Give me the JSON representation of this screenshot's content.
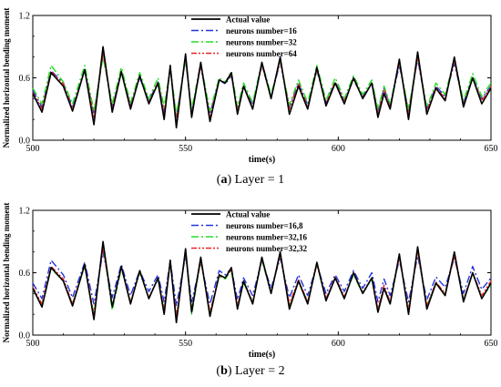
{
  "panels": [
    {
      "caption_letter": "a",
      "caption_text": "Layer = 1"
    },
    {
      "caption_letter": "b",
      "caption_text": "Layer = 2"
    }
  ],
  "chart_data": [
    {
      "type": "line",
      "title": "",
      "xlabel": "time(s)",
      "ylabel": "Normalized horizontal bending moment",
      "xlim": [
        500,
        650
      ],
      "ylim": [
        0,
        1.2
      ],
      "xticks": [
        500,
        550,
        600,
        650
      ],
      "yticks": [
        0,
        0.6,
        1.2
      ],
      "ytick_labels": [
        "0.0",
        "0.6",
        "1.2"
      ],
      "legend_position": "top-center",
      "series": [
        {
          "name": "Actual value",
          "color": "#000000",
          "dash": "solid",
          "x": [
            500,
            503,
            506,
            510,
            513,
            517,
            520,
            523,
            526,
            529,
            532,
            535,
            538,
            541,
            543,
            545,
            547,
            550,
            552,
            555,
            558,
            561,
            563,
            565,
            567,
            569,
            572,
            575,
            578,
            581,
            584,
            587,
            590,
            593,
            596,
            599,
            602,
            605,
            608,
            611,
            613,
            615,
            617,
            620,
            623,
            626,
            629,
            632,
            635,
            638,
            641,
            644,
            647,
            650
          ],
          "y": [
            0.45,
            0.27,
            0.65,
            0.52,
            0.28,
            0.68,
            0.15,
            0.9,
            0.27,
            0.66,
            0.3,
            0.62,
            0.35,
            0.55,
            0.2,
            0.72,
            0.12,
            0.83,
            0.22,
            0.75,
            0.18,
            0.58,
            0.55,
            0.65,
            0.25,
            0.52,
            0.3,
            0.75,
            0.4,
            0.8,
            0.25,
            0.52,
            0.3,
            0.7,
            0.33,
            0.55,
            0.35,
            0.6,
            0.4,
            0.55,
            0.22,
            0.45,
            0.3,
            0.78,
            0.2,
            0.85,
            0.25,
            0.5,
            0.38,
            0.8,
            0.32,
            0.6,
            0.35,
            0.5
          ]
        },
        {
          "name": "neurons number=16",
          "color": "#2233dd",
          "dash": "dashdot",
          "x": [
            500,
            503,
            506,
            510,
            513,
            517,
            520,
            523,
            526,
            529,
            532,
            535,
            538,
            541,
            543,
            545,
            547,
            550,
            552,
            555,
            558,
            561,
            563,
            565,
            567,
            569,
            572,
            575,
            578,
            581,
            584,
            587,
            590,
            593,
            596,
            599,
            602,
            605,
            608,
            611,
            613,
            615,
            617,
            620,
            623,
            626,
            629,
            632,
            635,
            638,
            641,
            644,
            647,
            650
          ],
          "y": [
            0.48,
            0.32,
            0.67,
            0.55,
            0.32,
            0.67,
            0.25,
            0.82,
            0.32,
            0.65,
            0.34,
            0.6,
            0.38,
            0.56,
            0.28,
            0.68,
            0.22,
            0.78,
            0.27,
            0.71,
            0.25,
            0.58,
            0.54,
            0.62,
            0.3,
            0.52,
            0.34,
            0.72,
            0.42,
            0.75,
            0.32,
            0.55,
            0.34,
            0.67,
            0.36,
            0.56,
            0.39,
            0.58,
            0.42,
            0.55,
            0.28,
            0.5,
            0.33,
            0.72,
            0.28,
            0.78,
            0.3,
            0.52,
            0.42,
            0.74,
            0.36,
            0.6,
            0.4,
            0.52
          ]
        },
        {
          "name": "neurons number=32",
          "color": "#22dd22",
          "dash": "dashdot",
          "x": [
            500,
            503,
            506,
            510,
            513,
            517,
            520,
            523,
            526,
            529,
            532,
            535,
            538,
            541,
            543,
            545,
            547,
            550,
            552,
            555,
            558,
            561,
            563,
            565,
            567,
            569,
            572,
            575,
            578,
            581,
            584,
            587,
            590,
            593,
            596,
            599,
            602,
            605,
            608,
            611,
            613,
            615,
            617,
            620,
            623,
            626,
            629,
            632,
            635,
            638,
            641,
            644,
            647,
            650
          ],
          "y": [
            0.5,
            0.35,
            0.72,
            0.56,
            0.35,
            0.72,
            0.28,
            0.8,
            0.35,
            0.7,
            0.36,
            0.65,
            0.4,
            0.6,
            0.32,
            0.7,
            0.25,
            0.76,
            0.3,
            0.74,
            0.28,
            0.6,
            0.56,
            0.66,
            0.32,
            0.55,
            0.36,
            0.75,
            0.44,
            0.76,
            0.34,
            0.58,
            0.36,
            0.72,
            0.38,
            0.6,
            0.4,
            0.62,
            0.44,
            0.58,
            0.3,
            0.52,
            0.35,
            0.74,
            0.3,
            0.8,
            0.32,
            0.55,
            0.44,
            0.78,
            0.38,
            0.64,
            0.42,
            0.55
          ]
        },
        {
          "name": "neurons number=64",
          "color": "#ee2222",
          "dash": "dashdotdot",
          "x": [
            500,
            503,
            506,
            510,
            513,
            517,
            520,
            523,
            526,
            529,
            532,
            535,
            538,
            541,
            543,
            545,
            547,
            550,
            552,
            555,
            558,
            561,
            563,
            565,
            567,
            569,
            572,
            575,
            578,
            581,
            584,
            587,
            590,
            593,
            596,
            599,
            602,
            605,
            608,
            611,
            613,
            615,
            617,
            620,
            623,
            626,
            629,
            632,
            635,
            638,
            641,
            644,
            647,
            650
          ],
          "y": [
            0.46,
            0.3,
            0.66,
            0.54,
            0.3,
            0.68,
            0.22,
            0.84,
            0.3,
            0.66,
            0.32,
            0.62,
            0.36,
            0.56,
            0.25,
            0.7,
            0.18,
            0.8,
            0.25,
            0.72,
            0.22,
            0.58,
            0.55,
            0.63,
            0.28,
            0.52,
            0.32,
            0.73,
            0.41,
            0.77,
            0.3,
            0.54,
            0.32,
            0.68,
            0.35,
            0.56,
            0.37,
            0.59,
            0.41,
            0.55,
            0.25,
            0.48,
            0.32,
            0.75,
            0.25,
            0.8,
            0.28,
            0.51,
            0.4,
            0.76,
            0.34,
            0.6,
            0.38,
            0.52
          ]
        }
      ]
    },
    {
      "type": "line",
      "title": "",
      "xlabel": "time(s)",
      "ylabel": "Normalized horizontal bending moment",
      "xlim": [
        500,
        650
      ],
      "ylim": [
        0,
        1.2
      ],
      "xticks": [
        500,
        550,
        600,
        650
      ],
      "yticks": [
        0,
        0.6,
        1.2
      ],
      "ytick_labels": [
        "0.0",
        "0.6",
        "1.2"
      ],
      "legend_position": "top-center",
      "series": [
        {
          "name": "Actual value",
          "color": "#000000",
          "dash": "solid",
          "x": [
            500,
            503,
            506,
            510,
            513,
            517,
            520,
            523,
            526,
            529,
            532,
            535,
            538,
            541,
            543,
            545,
            547,
            550,
            552,
            555,
            558,
            561,
            563,
            565,
            567,
            569,
            572,
            575,
            578,
            581,
            584,
            587,
            590,
            593,
            596,
            599,
            602,
            605,
            608,
            611,
            613,
            615,
            617,
            620,
            623,
            626,
            629,
            632,
            635,
            638,
            641,
            644,
            647,
            650
          ],
          "y": [
            0.45,
            0.27,
            0.65,
            0.52,
            0.28,
            0.68,
            0.15,
            0.9,
            0.27,
            0.66,
            0.3,
            0.62,
            0.35,
            0.55,
            0.2,
            0.72,
            0.12,
            0.83,
            0.22,
            0.75,
            0.18,
            0.58,
            0.55,
            0.65,
            0.25,
            0.52,
            0.3,
            0.75,
            0.4,
            0.8,
            0.25,
            0.52,
            0.3,
            0.7,
            0.33,
            0.55,
            0.35,
            0.6,
            0.4,
            0.55,
            0.22,
            0.45,
            0.3,
            0.78,
            0.2,
            0.85,
            0.25,
            0.5,
            0.38,
            0.8,
            0.32,
            0.6,
            0.35,
            0.5
          ]
        },
        {
          "name": "neurons number=16,8",
          "color": "#2233dd",
          "dash": "dashdot",
          "x": [
            500,
            503,
            506,
            510,
            513,
            517,
            520,
            523,
            526,
            529,
            532,
            535,
            538,
            541,
            543,
            545,
            547,
            550,
            552,
            555,
            558,
            561,
            563,
            565,
            567,
            569,
            572,
            575,
            578,
            581,
            584,
            587,
            590,
            593,
            596,
            599,
            602,
            605,
            608,
            611,
            613,
            615,
            617,
            620,
            623,
            626,
            629,
            632,
            635,
            638,
            641,
            644,
            647,
            650
          ],
          "y": [
            0.5,
            0.35,
            0.72,
            0.58,
            0.36,
            0.7,
            0.3,
            0.8,
            0.36,
            0.68,
            0.38,
            0.62,
            0.42,
            0.58,
            0.32,
            0.72,
            0.28,
            0.76,
            0.32,
            0.7,
            0.3,
            0.62,
            0.58,
            0.64,
            0.34,
            0.55,
            0.38,
            0.72,
            0.45,
            0.74,
            0.36,
            0.58,
            0.38,
            0.68,
            0.4,
            0.58,
            0.42,
            0.62,
            0.45,
            0.6,
            0.32,
            0.54,
            0.38,
            0.72,
            0.32,
            0.76,
            0.34,
            0.56,
            0.46,
            0.74,
            0.4,
            0.66,
            0.44,
            0.55
          ]
        },
        {
          "name": "neurons number=32,16",
          "color": "#22dd22",
          "dash": "dashdot",
          "x": [
            500,
            503,
            506,
            510,
            513,
            517,
            520,
            523,
            526,
            529,
            532,
            535,
            538,
            541,
            543,
            545,
            547,
            550,
            552,
            555,
            558,
            561,
            563,
            565,
            567,
            569,
            572,
            575,
            578,
            581,
            584,
            587,
            590,
            593,
            596,
            599,
            602,
            605,
            608,
            611,
            613,
            615,
            617,
            620,
            623,
            626,
            629,
            632,
            635,
            638,
            641,
            644,
            647,
            650
          ],
          "y": [
            0.44,
            0.3,
            0.64,
            0.52,
            0.3,
            0.66,
            0.2,
            0.86,
            0.24,
            0.64,
            0.32,
            0.6,
            0.36,
            0.54,
            0.24,
            0.7,
            0.16,
            0.8,
            0.2,
            0.72,
            0.22,
            0.56,
            0.54,
            0.62,
            0.27,
            0.5,
            0.32,
            0.72,
            0.4,
            0.78,
            0.28,
            0.52,
            0.32,
            0.68,
            0.34,
            0.55,
            0.36,
            0.58,
            0.4,
            0.54,
            0.24,
            0.46,
            0.3,
            0.76,
            0.24,
            0.82,
            0.28,
            0.5,
            0.4,
            0.78,
            0.34,
            0.6,
            0.36,
            0.48
          ]
        },
        {
          "name": "neurons number=32,32",
          "color": "#ee2222",
          "dash": "dashdotdot",
          "x": [
            500,
            503,
            506,
            510,
            513,
            517,
            520,
            523,
            526,
            529,
            532,
            535,
            538,
            541,
            543,
            545,
            547,
            550,
            552,
            555,
            558,
            561,
            563,
            565,
            567,
            569,
            572,
            575,
            578,
            581,
            584,
            587,
            590,
            593,
            596,
            599,
            602,
            605,
            608,
            611,
            613,
            615,
            617,
            620,
            623,
            626,
            629,
            632,
            635,
            638,
            641,
            644,
            647,
            650
          ],
          "y": [
            0.46,
            0.3,
            0.66,
            0.54,
            0.3,
            0.67,
            0.2,
            0.85,
            0.28,
            0.65,
            0.32,
            0.61,
            0.36,
            0.55,
            0.24,
            0.7,
            0.18,
            0.8,
            0.24,
            0.72,
            0.22,
            0.57,
            0.55,
            0.63,
            0.28,
            0.52,
            0.32,
            0.73,
            0.41,
            0.77,
            0.3,
            0.53,
            0.32,
            0.68,
            0.35,
            0.56,
            0.37,
            0.59,
            0.41,
            0.55,
            0.25,
            0.48,
            0.32,
            0.75,
            0.25,
            0.8,
            0.28,
            0.51,
            0.4,
            0.76,
            0.34,
            0.6,
            0.38,
            0.52
          ]
        }
      ]
    }
  ]
}
